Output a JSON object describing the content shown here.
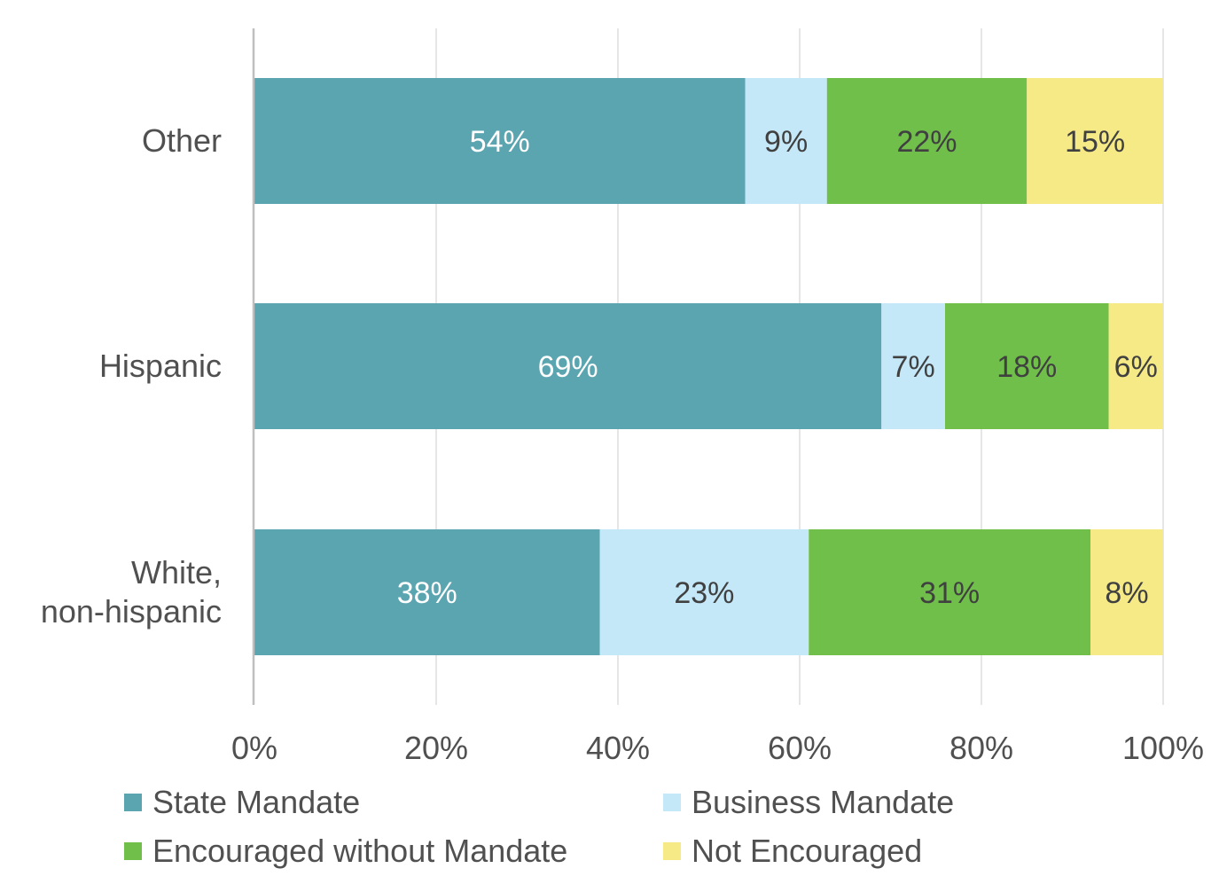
{
  "chart_data": {
    "type": "bar",
    "orientation": "horizontal",
    "stacked": true,
    "categories": [
      "Other",
      "Hispanic",
      "White, non-hispanic"
    ],
    "category_label_lines": [
      [
        "Other"
      ],
      [
        "Hispanic"
      ],
      [
        "White,",
        "non-hispanic"
      ]
    ],
    "series": [
      {
        "name": "State Mandate",
        "color": "#5ba5b0",
        "label_color": "#ffffff",
        "values": [
          54,
          69,
          38
        ],
        "labels": [
          "54%",
          "69%",
          "38%"
        ]
      },
      {
        "name": "Business Mandate",
        "color": "#c5e8f8",
        "label_color": "#404040",
        "values": [
          9,
          7,
          23
        ],
        "labels": [
          "9%",
          "7%",
          "23%"
        ]
      },
      {
        "name": "Encouraged without Mandate",
        "color": "#70bf4b",
        "label_color": "#404040",
        "values": [
          22,
          18,
          31
        ],
        "labels": [
          "22%",
          "18%",
          "31%"
        ]
      },
      {
        "name": "Not Encouraged",
        "color": "#f5ea86",
        "label_color": "#404040",
        "values": [
          15,
          6,
          8
        ],
        "labels": [
          "15%",
          "6%",
          "8%"
        ]
      }
    ],
    "xlim": [
      0,
      100
    ],
    "x_ticks": [
      0,
      20,
      40,
      60,
      80,
      100
    ],
    "x_tick_labels": [
      "0%",
      "20%",
      "40%",
      "60%",
      "80%",
      "100%"
    ],
    "grid": true,
    "legend_position": "bottom"
  }
}
